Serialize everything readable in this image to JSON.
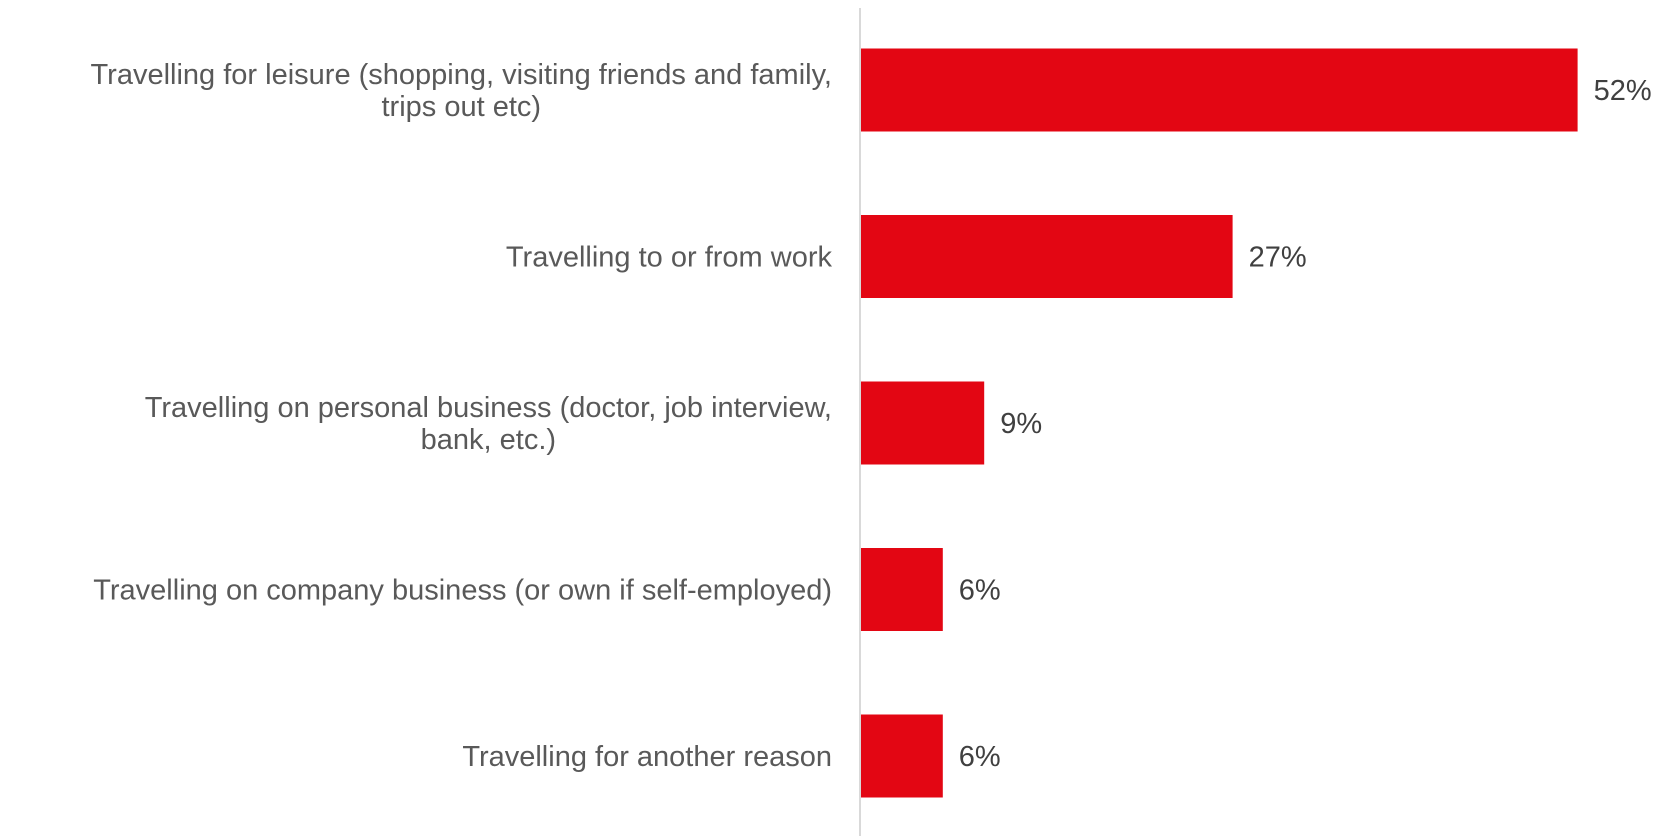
{
  "chart_data": {
    "type": "bar",
    "orientation": "horizontal",
    "categories": [
      [
        "Travelling for leisure (shopping, visiting friends and family,",
        "trips out etc)"
      ],
      [
        "Travelling to or from work"
      ],
      [
        "Travelling on personal business (doctor, job interview,",
        "bank, etc.)"
      ],
      [
        "Travelling on company business (or own if self-employed)"
      ],
      [
        "Travelling for another reason"
      ]
    ],
    "values": [
      52,
      27,
      9,
      6,
      6
    ],
    "value_labels": [
      "52%",
      "27%",
      "9%",
      "6%",
      "6%"
    ],
    "xlim": [
      0,
      60
    ],
    "grid": false,
    "bar_color": "#E30613",
    "axis_color": "#D9D9D9"
  }
}
